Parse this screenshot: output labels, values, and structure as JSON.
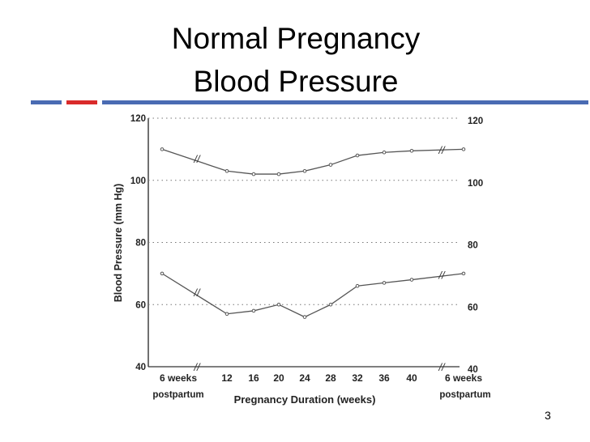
{
  "slide": {
    "title_line1": "Normal Pregnancy",
    "title_line2": "Blood Pressure",
    "page_number": "3",
    "accent_colors": {
      "blue": "#4a6bb3",
      "red": "#d92b2b"
    }
  },
  "chart_data": {
    "type": "line",
    "title": "",
    "xlabel": "Pregnancy Duration (weeks)",
    "ylabel": "Blood Pressure (mm Hg)",
    "ylim": [
      40,
      120
    ],
    "y_ticks": [
      "40",
      "60",
      "80",
      "100",
      "120"
    ],
    "grid": "dotted horizontal",
    "x_tick_labels": [
      {
        "text": "6 weeks",
        "sub": "postpartum"
      },
      {
        "text": "12"
      },
      {
        "text": "16"
      },
      {
        "text": "20"
      },
      {
        "text": "24"
      },
      {
        "text": "28"
      },
      {
        "text": "32"
      },
      {
        "text": "36"
      },
      {
        "text": "40"
      },
      {
        "text": "6 weeks",
        "sub": "postpartum"
      }
    ],
    "series": [
      {
        "points": [
          {
            "x": "6 weeks postpartum",
            "y": 110
          },
          {
            "x": 12,
            "y": 103
          },
          {
            "x": 16,
            "y": 102
          },
          {
            "x": 20,
            "y": 102
          },
          {
            "x": 24,
            "y": 103
          },
          {
            "x": 28,
            "y": 105
          },
          {
            "x": 32,
            "y": 108
          },
          {
            "x": 36,
            "y": 109
          },
          {
            "x": 40,
            "y": 109.5
          },
          {
            "x": "6 weeks postpartum",
            "y": 110
          }
        ]
      },
      {
        "points": [
          {
            "x": "6 weeks postpartum",
            "y": 70
          },
          {
            "x": 12,
            "y": 57
          },
          {
            "x": 16,
            "y": 58
          },
          {
            "x": 20,
            "y": 60
          },
          {
            "x": 24,
            "y": 56
          },
          {
            "x": 28,
            "y": 60
          },
          {
            "x": 32,
            "y": 66
          },
          {
            "x": 36,
            "y": 67
          },
          {
            "x": 40,
            "y": 68
          },
          {
            "x": "6 weeks postpartum",
            "y": 70
          }
        ]
      }
    ],
    "break_marker": "//"
  }
}
